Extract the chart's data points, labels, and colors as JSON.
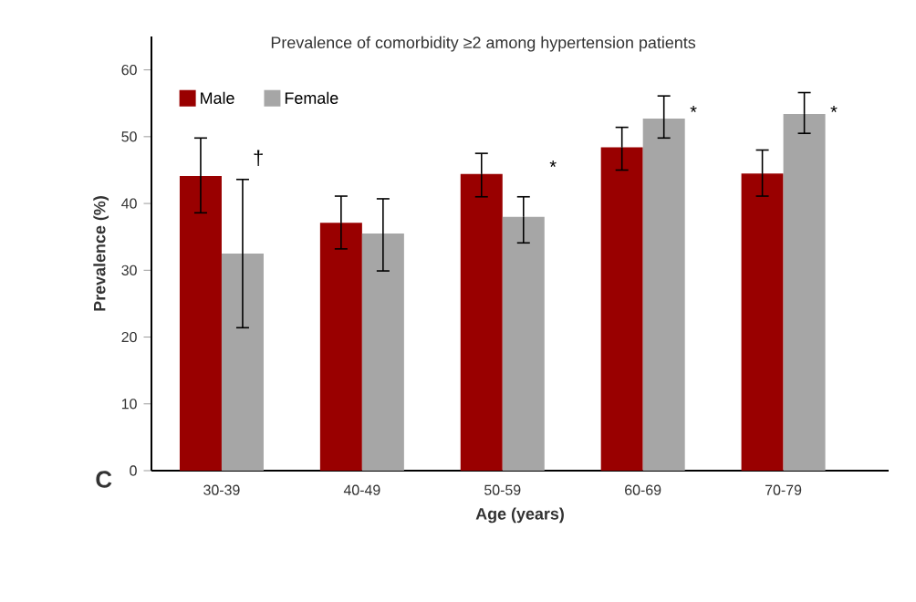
{
  "chart_data": {
    "type": "bar",
    "title": "Prevalence of comorbidity ≥2 among hypertension patients",
    "xlabel": "Age (years)",
    "ylabel": "Prevalence (%)",
    "categories": [
      "30-39",
      "40-49",
      "50-59",
      "60-69",
      "70-79"
    ],
    "series": [
      {
        "name": "Male",
        "color": "#990000",
        "values": [
          44.1,
          37.1,
          44.4,
          48.4,
          44.5
        ],
        "errors": [
          [
            38.6,
            49.8
          ],
          [
            33.2,
            41.1
          ],
          [
            41.0,
            47.5
          ],
          [
            45.0,
            51.4
          ],
          [
            41.1,
            48.0
          ]
        ]
      },
      {
        "name": "Female",
        "color": "#a6a6a6",
        "values": [
          32.5,
          35.5,
          38.0,
          52.7,
          53.4
        ],
        "errors": [
          [
            21.4,
            43.6
          ],
          [
            29.9,
            40.7
          ],
          [
            34.1,
            41.0
          ],
          [
            49.8,
            56.1
          ],
          [
            50.5,
            56.6
          ]
        ]
      }
    ],
    "ylim": [
      0,
      65
    ],
    "yticks": [
      0,
      10,
      20,
      30,
      40,
      50,
      60
    ],
    "grid": false,
    "legend": "top left",
    "annotations": [
      "†",
      {
        "text": "*",
        "x": "50-59",
        "y": 45.5
      },
      {
        "text": "*",
        "x": "60-69",
        "y": 53.7
      },
      {
        "text": "*",
        "x": "70-79",
        "y": 53.7
      },
      "C"
    ]
  }
}
